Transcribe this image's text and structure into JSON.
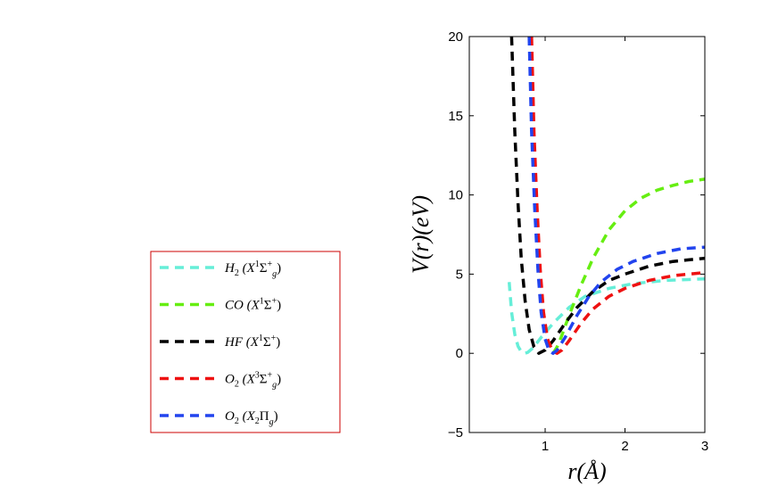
{
  "chart_data": {
    "type": "line",
    "title": "",
    "xlabel": "r(Å)",
    "ylabel": "V(r)(eV)",
    "xlim": [
      0.05,
      3
    ],
    "ylim": [
      -5,
      20
    ],
    "xticks": [
      "1",
      "2",
      "3"
    ],
    "yticks": [
      "−5",
      "0",
      "5",
      "10",
      "15",
      "20"
    ],
    "xtick_values": [
      1,
      2,
      3
    ],
    "ytick_values": [
      -5,
      0,
      5,
      10,
      15,
      20
    ],
    "grid": false,
    "legend_position": "left",
    "series": [
      {
        "name": "H2 (X1Σg+)",
        "legend": {
          "base": "H",
          "sub": "2",
          "state": "X",
          "sup1": "1",
          "sym": "Σ",
          "sub2": "g",
          "sup2": "+"
        },
        "color": "#66eed8",
        "x": [
          0.55,
          0.58,
          0.62,
          0.66,
          0.7,
          0.74,
          0.78,
          0.85,
          0.95,
          1.1,
          1.3,
          1.5,
          1.8,
          2.1,
          2.5,
          3.0
        ],
        "y": [
          4.5,
          2.6,
          1.2,
          0.45,
          0.1,
          0.0,
          0.05,
          0.35,
          1.0,
          1.9,
          2.9,
          3.6,
          4.1,
          4.4,
          4.6,
          4.7
        ]
      },
      {
        "name": "CO (X1Σ+)",
        "legend": {
          "base": "CO",
          "sub": "",
          "state": "X",
          "sup1": "1",
          "sym": "Σ",
          "sub2": "",
          "sup2": "+"
        },
        "color": "#66ee11",
        "x": [
          1.1,
          1.15,
          1.2,
          1.3,
          1.45,
          1.6,
          1.8,
          2.0,
          2.2,
          2.4,
          2.6,
          2.8,
          3.0
        ],
        "y": [
          0.0,
          0.4,
          1.0,
          2.4,
          4.3,
          6.0,
          7.8,
          9.0,
          9.8,
          10.3,
          10.6,
          10.85,
          11.0
        ]
      },
      {
        "name": "HF (X1Σ+)",
        "legend": {
          "base": "HF",
          "sub": "",
          "state": "X",
          "sup1": "1",
          "sym": "Σ",
          "sub2": "",
          "sup2": "+"
        },
        "color": "#000000",
        "x": [
          0.58,
          0.62,
          0.66,
          0.7,
          0.75,
          0.8,
          0.86,
          0.92,
          1.0,
          1.1,
          1.25,
          1.4,
          1.6,
          1.8,
          2.0,
          2.3,
          2.6,
          3.0
        ],
        "y": [
          20.0,
          14.0,
          9.5,
          6.0,
          3.3,
          1.5,
          0.4,
          0.0,
          0.2,
          0.8,
          1.9,
          2.9,
          3.9,
          4.6,
          5.0,
          5.5,
          5.8,
          6.0
        ]
      },
      {
        "name": "O2 (X3Σg+)",
        "legend": {
          "base": "O",
          "sub": "2",
          "state": "X",
          "sup1": "3",
          "sym": "Σ",
          "sub2": "g",
          "sup2": "+"
        },
        "color": "#ee1111",
        "x": [
          0.83,
          0.86,
          0.9,
          0.94,
          0.98,
          1.03,
          1.09,
          1.15,
          1.21,
          1.3,
          1.45,
          1.6,
          1.8,
          2.0,
          2.3,
          2.6,
          3.0
        ],
        "y": [
          20.0,
          14.0,
          9.0,
          5.2,
          2.6,
          0.9,
          0.15,
          0.0,
          0.2,
          0.8,
          1.9,
          2.8,
          3.6,
          4.1,
          4.6,
          4.9,
          5.1
        ]
      },
      {
        "name": "O2 (X2Πg)",
        "legend": {
          "base": "O",
          "sub": "2",
          "state": "X",
          "sup1": "",
          "sym": "Π",
          "sub2": "g",
          "sup2": "",
          "stateSub": "2"
        },
        "color": "#2244ee",
        "x": [
          0.8,
          0.83,
          0.87,
          0.91,
          0.95,
          1.0,
          1.05,
          1.1,
          1.15,
          1.25,
          1.4,
          1.55,
          1.7,
          1.9,
          2.1,
          2.4,
          2.7,
          3.0
        ],
        "y": [
          20.0,
          14.0,
          9.0,
          5.2,
          2.6,
          0.9,
          0.15,
          0.0,
          0.2,
          1.0,
          2.4,
          3.6,
          4.5,
          5.3,
          5.8,
          6.3,
          6.6,
          6.7
        ]
      }
    ]
  }
}
